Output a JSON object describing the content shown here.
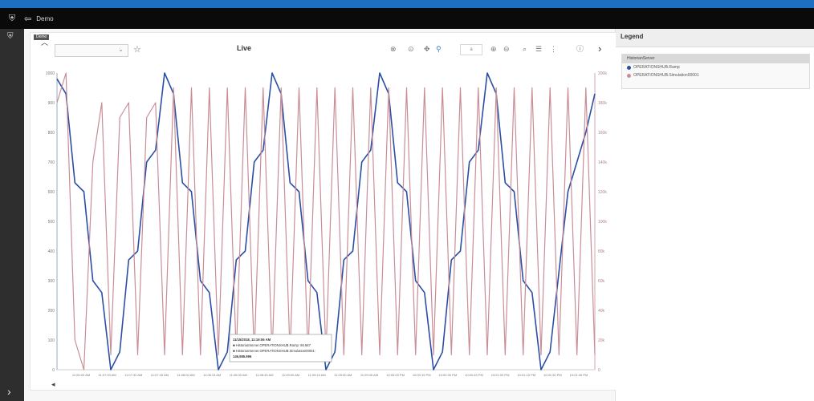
{
  "app": {
    "title": "Demo",
    "tab_label": "Demo"
  },
  "toolbar": {
    "title": "Live",
    "dropdown_value": "",
    "zoom_value": "a"
  },
  "legend": {
    "header": "Legend",
    "group": "HistorianServer",
    "items": [
      {
        "label": "OPERATIONSHUB.Ramp",
        "color": "#2b4fa5"
      },
      {
        "label": "OPERATIONSHUB.Simulation00001",
        "color": "#c98d96"
      }
    ]
  },
  "tooltip": {
    "time": "11/15/2018, 11:19:06 AM",
    "line1_label": "HistorianServer.OPERATIONSHUB.Ramp:",
    "line1_value": "66.667",
    "line2_label": "HistorianServer.OPERATIONSHUB.Simulation00001:",
    "line2_value": "146,985.996"
  },
  "chart_data": {
    "type": "line",
    "title": "Live",
    "xlabel": "",
    "ylabel": "",
    "ylim_left": [
      0,
      1000
    ],
    "ylim_right": [
      0,
      200000
    ],
    "y_ticks_left": [
      "1000",
      "900",
      "800",
      "700",
      "600",
      "500",
      "400",
      "300",
      "200",
      "100",
      "0"
    ],
    "y_ticks_right": [
      "200k",
      "180k",
      "160k",
      "140k",
      "120k",
      "100k",
      "80k",
      "60k",
      "40k",
      "20k",
      "0"
    ],
    "x_ticks": [
      "11:06:00 AM",
      "11:07:00 AM",
      "11:07:30 AM",
      "11:07:45 AM",
      "11:08:00 AM",
      "11:08:15 AM",
      "11:08:30 AM",
      "11:08:45 AM",
      "11:09:00 AM",
      "11:09:15 AM",
      "11:09:30 AM",
      "11:09:45 AM",
      "10:00:00 PM",
      "10:00:15 PM",
      "10:00:30 PM",
      "10:00:45 PM",
      "10:01:00 PM",
      "10:01:15 PM",
      "10:01:30 PM",
      "10:01:45 PM"
    ],
    "grid": false,
    "legend_position": "right panel",
    "series": [
      {
        "name": "OPERATIONSHUB.Ramp",
        "axis": "left",
        "color": "#2b4fa5",
        "values": [
          980,
          930,
          630,
          600,
          300,
          260,
          0,
          60,
          370,
          400,
          700,
          740,
          1000,
          930,
          630,
          600,
          300,
          260,
          0,
          60,
          370,
          400,
          700,
          740,
          1000,
          930,
          630,
          600,
          300,
          260,
          0,
          60,
          370,
          400,
          700,
          740,
          1000,
          930,
          630,
          600,
          300,
          260,
          0,
          60,
          370,
          400,
          700,
          740,
          1000,
          930,
          630,
          600,
          300,
          260,
          0,
          60,
          330,
          600,
          700,
          800,
          930
        ]
      },
      {
        "name": "OPERATIONSHUB.Simulation00001",
        "axis": "right",
        "color": "#c98d96",
        "values": [
          180000,
          200000,
          20000,
          0,
          140000,
          180000,
          10000,
          170000,
          180000,
          10000,
          170000,
          180000,
          10000,
          190000,
          10000,
          190000,
          10000,
          190000,
          10000,
          190000,
          10000,
          190000,
          10000,
          190000,
          10000,
          190000,
          10000,
          190000,
          10000,
          190000,
          10000,
          190000,
          10000,
          190000,
          10000,
          190000,
          10000,
          190000,
          10000,
          190000,
          10000,
          190000,
          10000,
          190000,
          10000,
          190000,
          10000,
          190000,
          10000,
          190000,
          10000,
          190000,
          10000,
          190000,
          10000,
          190000,
          10000,
          190000,
          10000,
          190000,
          10000
        ]
      }
    ]
  }
}
